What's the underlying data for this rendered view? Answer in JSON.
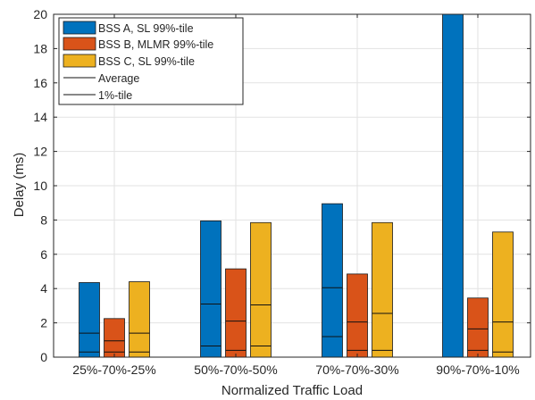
{
  "chart_data": {
    "type": "bar",
    "title": "",
    "xlabel": "Normalized Traffic Load",
    "ylabel": "Delay (ms)",
    "ylim": [
      0,
      20
    ],
    "yticks": [
      0,
      2,
      4,
      6,
      8,
      10,
      12,
      14,
      16,
      18,
      20
    ],
    "grid": true,
    "legend_position": "top-left",
    "categories": [
      "25%-70%-25%",
      "50%-70%-50%",
      "70%-70%-30%",
      "90%-70%-10%"
    ],
    "series": [
      {
        "name": "BSS A, SL 99%-tile",
        "color": "#0072BD",
        "values": [
          4.35,
          7.95,
          8.95,
          20.0
        ],
        "average": [
          1.4,
          3.1,
          4.05,
          null
        ],
        "p1": [
          0.3,
          0.65,
          1.2,
          null
        ]
      },
      {
        "name": "BSS B, MLMR 99%-tile",
        "color": "#D95319",
        "values": [
          2.25,
          5.15,
          4.85,
          3.45
        ],
        "average": [
          0.95,
          2.1,
          2.05,
          1.65
        ],
        "p1": [
          0.3,
          0.4,
          0.4,
          0.4
        ]
      },
      {
        "name": "BSS C, SL 99%-tile",
        "color": "#EDB120",
        "values": [
          4.4,
          7.85,
          7.85,
          7.3
        ],
        "average": [
          1.4,
          3.05,
          2.55,
          2.05
        ],
        "p1": [
          0.3,
          0.65,
          0.4,
          0.3
        ]
      }
    ],
    "line_legend": [
      "Average",
      "1%-tile"
    ]
  }
}
